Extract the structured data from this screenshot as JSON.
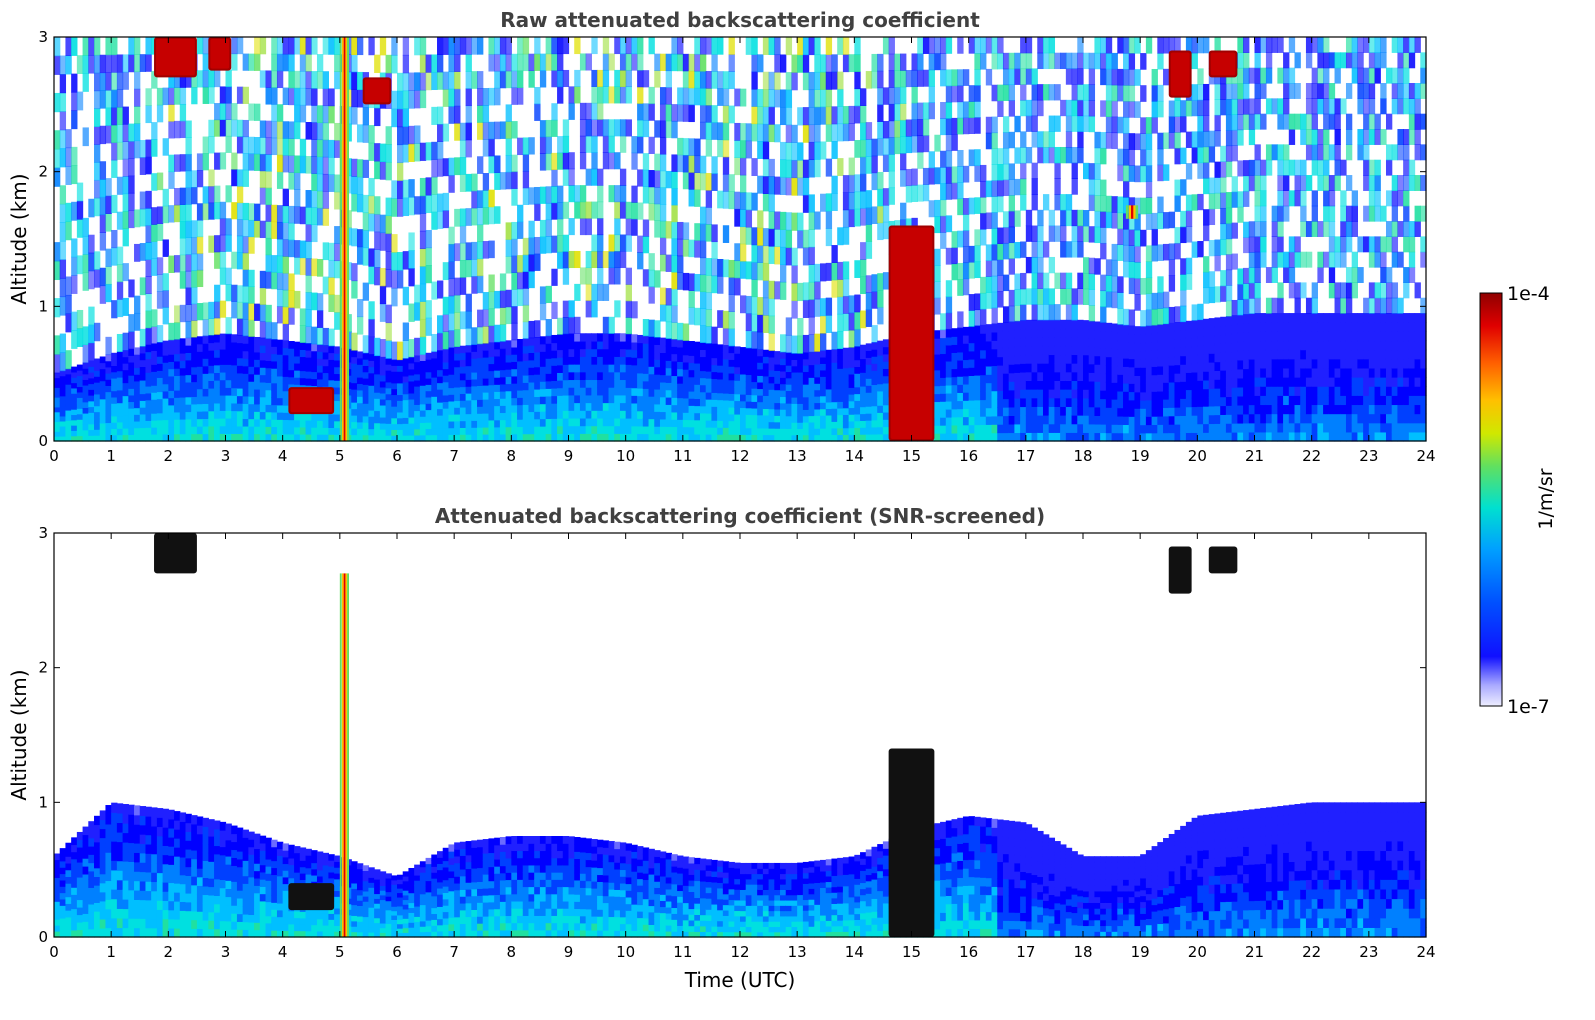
{
  "chart_data": [
    {
      "type": "heatmap",
      "title": "Raw attenuated backscattering coefficient",
      "xlabel": "",
      "ylabel": "Altitude (km)",
      "xlim": [
        0,
        24
      ],
      "ylim": [
        0,
        3
      ],
      "x_ticks": [
        "0",
        "1",
        "2",
        "3",
        "4",
        "5",
        "6",
        "7",
        "8",
        "9",
        "10",
        "11",
        "12",
        "13",
        "14",
        "15",
        "16",
        "17",
        "18",
        "19",
        "20",
        "21",
        "22",
        "23",
        "24"
      ],
      "y_ticks": [
        "0",
        "1",
        "2",
        "3"
      ],
      "color_scale": "log",
      "boundary_layer_top_km": [
        [
          0,
          0.5
        ],
        [
          1,
          0.65
        ],
        [
          2,
          0.75
        ],
        [
          3,
          0.8
        ],
        [
          4,
          0.75
        ],
        [
          5,
          0.7
        ],
        [
          6,
          0.6
        ],
        [
          7,
          0.7
        ],
        [
          8,
          0.75
        ],
        [
          9,
          0.8
        ],
        [
          10,
          0.8
        ],
        [
          11,
          0.75
        ],
        [
          12,
          0.7
        ],
        [
          13,
          0.65
        ],
        [
          14,
          0.7
        ],
        [
          15,
          0.8
        ],
        [
          16,
          0.85
        ],
        [
          17,
          0.9
        ],
        [
          18,
          0.9
        ],
        [
          19,
          0.85
        ],
        [
          20,
          0.9
        ],
        [
          21,
          0.95
        ],
        [
          22,
          0.95
        ],
        [
          23,
          0.95
        ],
        [
          24,
          0.95
        ]
      ],
      "cloud_features": [
        {
          "time_start": 1.75,
          "time_end": 2.5,
          "alt_base_km": 2.7,
          "alt_top_km": 3.0
        },
        {
          "time_start": 2.7,
          "time_end": 3.1,
          "alt_base_km": 2.75,
          "alt_top_km": 3.0
        },
        {
          "time_start": 4.1,
          "time_end": 4.9,
          "alt_base_km": 0.2,
          "alt_top_km": 0.4
        },
        {
          "time_start": 5.0,
          "time_end": 5.15,
          "alt_base_km": 0.0,
          "alt_top_km": 3.0
        },
        {
          "time_start": 5.4,
          "time_end": 5.9,
          "alt_base_km": 2.5,
          "alt_top_km": 2.7
        },
        {
          "time_start": 14.6,
          "time_end": 15.4,
          "alt_base_km": 0.0,
          "alt_top_km": 1.6
        },
        {
          "time_start": 18.75,
          "time_end": 18.95,
          "alt_base_km": 1.65,
          "alt_top_km": 1.75
        },
        {
          "time_start": 19.5,
          "time_end": 19.9,
          "alt_base_km": 2.55,
          "alt_top_km": 2.9
        },
        {
          "time_start": 20.2,
          "time_end": 20.7,
          "alt_base_km": 2.7,
          "alt_top_km": 2.9
        }
      ],
      "grid": false
    },
    {
      "type": "heatmap",
      "title": "Attenuated backscattering coefficient (SNR-screened)",
      "xlabel": "Time (UTC)",
      "ylabel": "Altitude (km)",
      "xlim": [
        0,
        24
      ],
      "ylim": [
        0,
        3
      ],
      "x_ticks": [
        "0",
        "1",
        "2",
        "3",
        "4",
        "5",
        "6",
        "7",
        "8",
        "9",
        "10",
        "11",
        "12",
        "13",
        "14",
        "15",
        "16",
        "17",
        "18",
        "19",
        "20",
        "21",
        "22",
        "23",
        "24"
      ],
      "y_ticks": [
        "0",
        "1",
        "2",
        "3"
      ],
      "color_scale": "log",
      "boundary_layer_top_km": [
        [
          0,
          0.6
        ],
        [
          1,
          1.0
        ],
        [
          2,
          0.95
        ],
        [
          3,
          0.85
        ],
        [
          4,
          0.7
        ],
        [
          5,
          0.6
        ],
        [
          6,
          0.45
        ],
        [
          7,
          0.7
        ],
        [
          8,
          0.75
        ],
        [
          9,
          0.75
        ],
        [
          10,
          0.7
        ],
        [
          11,
          0.6
        ],
        [
          12,
          0.55
        ],
        [
          13,
          0.55
        ],
        [
          14,
          0.6
        ],
        [
          15,
          0.8
        ],
        [
          16,
          0.9
        ],
        [
          17,
          0.85
        ],
        [
          18,
          0.6
        ],
        [
          19,
          0.6
        ],
        [
          20,
          0.9
        ],
        [
          21,
          0.95
        ],
        [
          22,
          1.0
        ],
        [
          23,
          1.0
        ],
        [
          24,
          1.0
        ]
      ],
      "cloud_features": [
        {
          "time_start": 1.75,
          "time_end": 2.5,
          "alt_base_km": 2.7,
          "alt_top_km": 3.0
        },
        {
          "time_start": 4.1,
          "time_end": 4.9,
          "alt_base_km": 0.2,
          "alt_top_km": 0.4
        },
        {
          "time_start": 5.0,
          "time_end": 5.15,
          "alt_base_km": 0.0,
          "alt_top_km": 2.7
        },
        {
          "time_start": 14.6,
          "time_end": 15.4,
          "alt_base_km": 0.0,
          "alt_top_km": 1.4
        },
        {
          "time_start": 19.5,
          "time_end": 19.9,
          "alt_base_km": 2.55,
          "alt_top_km": 2.9
        },
        {
          "time_start": 20.2,
          "time_end": 20.7,
          "alt_base_km": 2.7,
          "alt_top_km": 2.9
        }
      ],
      "grid": false
    }
  ],
  "colorbar": {
    "label": "1/m/sr",
    "min_label": "1e-7",
    "max_label": "1e-4",
    "colors": [
      "#e8e8ff",
      "#a8a8ff",
      "#6b6bff",
      "#2020ff",
      "#0000ff",
      "#0040ff",
      "#0080ff",
      "#00bfff",
      "#00e0e0",
      "#20e0a0",
      "#60e060",
      "#a0e040",
      "#e0e000",
      "#ffc000",
      "#ff8000",
      "#ff4000",
      "#e00000",
      "#a00000"
    ]
  }
}
